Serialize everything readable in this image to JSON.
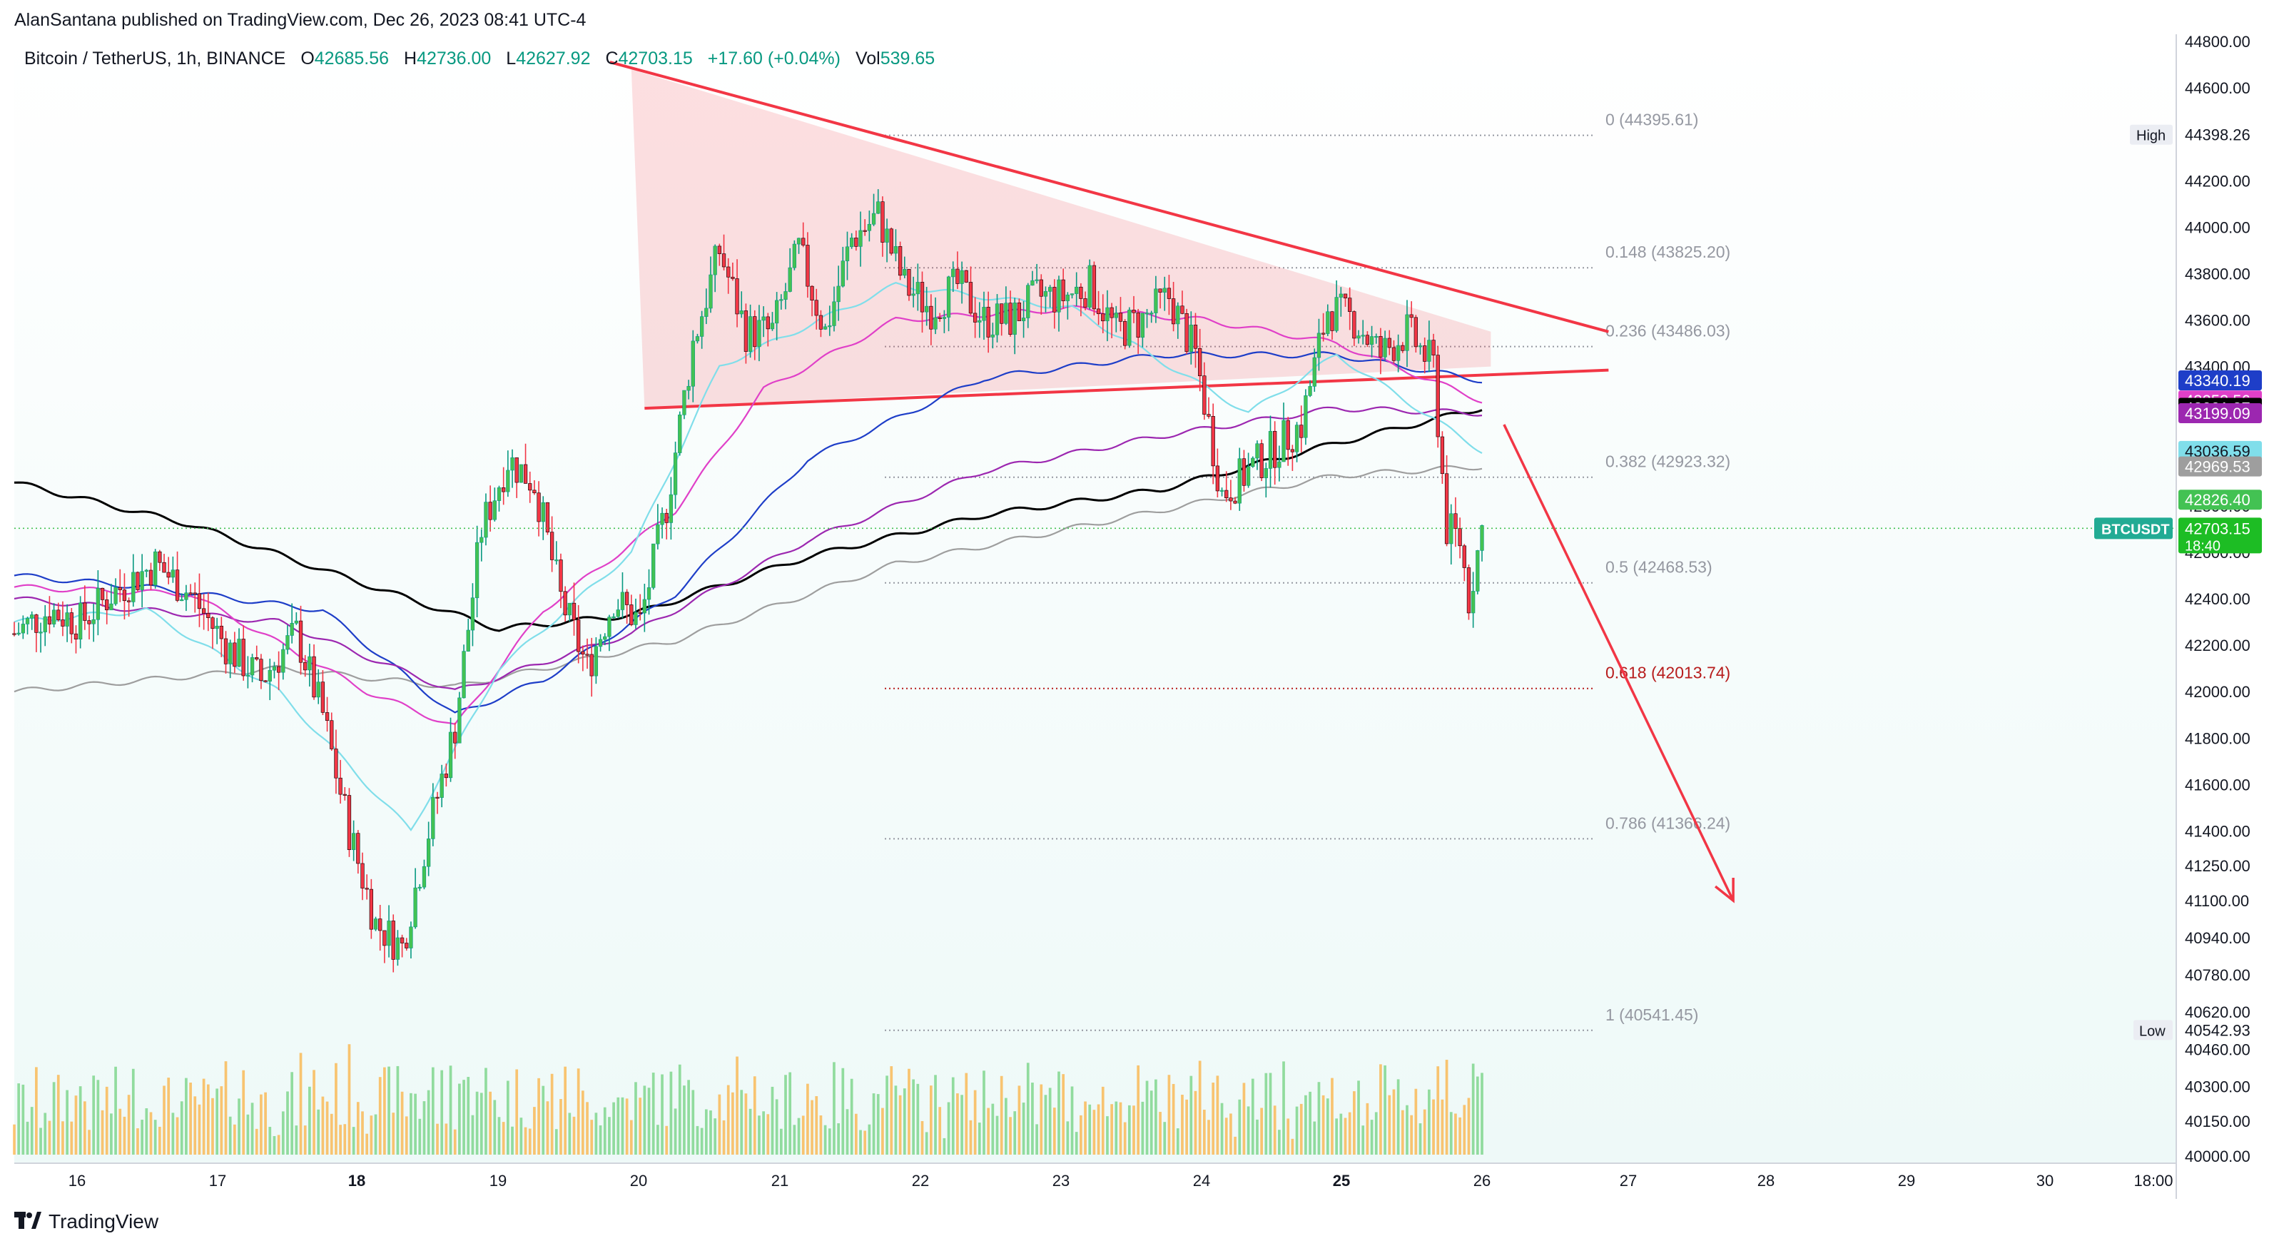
{
  "header": {
    "published_line": "AlanSantana published on TradingView.com, Dec 26, 2023 08:41 UTC-4"
  },
  "legend": {
    "symbol": "Bitcoin / TetherUS, 1h, BINANCE",
    "o_label": "O",
    "o_value": "42685.56",
    "h_label": "H",
    "h_value": "42736.00",
    "l_label": "L",
    "l_value": "42627.92",
    "c_label": "C",
    "c_value": "42703.15",
    "change": "+17.60 (+0.04%)",
    "vol_label": "Vol",
    "vol_value": "539.65"
  },
  "footer": {
    "brand": "TradingView"
  },
  "colors": {
    "up": "#089981",
    "up_fill": "#43c253",
    "down": "#f23645",
    "ema_black": "#000000",
    "ema_blue": "#1e3ec8",
    "ema_magenta": "#e040c8",
    "ema_purple": "#9c27b0",
    "ema_cyan": "#80deea",
    "ema_gray": "#9e9e9e",
    "triangle": "#f23645",
    "arrow": "#f23645"
  },
  "chart_data": {
    "type": "candlestick",
    "title": "Bitcoin / TetherUS, 1h, BINANCE",
    "timeframe": "1h",
    "x_axis_labels": [
      "16",
      "17",
      "18",
      "19",
      "20",
      "21",
      "22",
      "23",
      "24",
      "25",
      "26",
      "27",
      "28",
      "29",
      "30",
      "18:00"
    ],
    "y_axis_ticks": [
      "44800.00",
      "44600.00",
      "44398.26",
      "44200.00",
      "44000.00",
      "43800.00",
      "43600.00",
      "43400.00",
      "43200.00",
      "43000.00",
      "42800.00",
      "42600.00",
      "42400.00",
      "42200.00",
      "42000.00",
      "41800.00",
      "41600.00",
      "41400.00",
      "41250.00",
      "41100.00",
      "40940.00",
      "40780.00",
      "40620.00",
      "40460.00",
      "40300.00",
      "40150.00",
      "40000.00"
    ],
    "ylim": [
      40000,
      44800
    ],
    "last_price": {
      "symbol": "BTCUSDT",
      "value": "42703.15",
      "countdown": "18:40"
    },
    "price_tags": [
      {
        "value": "43340.19",
        "color": "#1e3ec8"
      },
      {
        "value": "43253.56",
        "color": "#e040c8"
      },
      {
        "value": "43221.87",
        "color": "#000000"
      },
      {
        "value": "43199.09",
        "color": "#9c27b0"
      },
      {
        "value": "43036.59",
        "color": "#80deea"
      },
      {
        "value": "42969.53",
        "color": "#9e9e9e"
      },
      {
        "value": "42826.40",
        "color": "#43c253"
      }
    ],
    "high": {
      "label": "High",
      "value": "44398.26"
    },
    "low": {
      "label": "Low",
      "value": "40542.93"
    },
    "fibonacci": [
      {
        "label": "0 (44395.61)",
        "value": 44395.61
      },
      {
        "label": "0.148 (43825.20)",
        "value": 43825.2
      },
      {
        "label": "0.236 (43486.03)",
        "value": 43486.03
      },
      {
        "label": "0.382 (42923.32)",
        "value": 42923.32
      },
      {
        "label": "0.5 (42468.53)",
        "value": 42468.53
      },
      {
        "label": "0.618 (42013.74)",
        "value": 42013.74,
        "color": "#b71c1c"
      },
      {
        "label": "0.786 (41366.24)",
        "value": 41366.24
      },
      {
        "label": "1 (40541.45)",
        "value": 40541.45
      }
    ],
    "anchors": [
      {
        "t": 0,
        "p": 42250
      },
      {
        "t": 8,
        "p": 42350
      },
      {
        "t": 15,
        "p": 42300
      },
      {
        "t": 22,
        "p": 42420
      },
      {
        "t": 32,
        "p": 42550
      },
      {
        "t": 40,
        "p": 42420
      },
      {
        "t": 48,
        "p": 42200
      },
      {
        "t": 56,
        "p": 42050
      },
      {
        "t": 64,
        "p": 42250
      },
      {
        "t": 70,
        "p": 41900
      },
      {
        "t": 76,
        "p": 41400
      },
      {
        "t": 82,
        "p": 41000
      },
      {
        "t": 88,
        "p": 40900
      },
      {
        "t": 94,
        "p": 41400
      },
      {
        "t": 100,
        "p": 41850
      },
      {
        "t": 106,
        "p": 42700
      },
      {
        "t": 112,
        "p": 43000
      },
      {
        "t": 118,
        "p": 42900
      },
      {
        "t": 124,
        "p": 42400
      },
      {
        "t": 130,
        "p": 42100
      },
      {
        "t": 136,
        "p": 42400
      },
      {
        "t": 142,
        "p": 42300
      },
      {
        "t": 148,
        "p": 42800
      },
      {
        "t": 154,
        "p": 43500
      },
      {
        "t": 160,
        "p": 43900
      },
      {
        "t": 166,
        "p": 43550
      },
      {
        "t": 172,
        "p": 43550
      },
      {
        "t": 178,
        "p": 43900
      },
      {
        "t": 184,
        "p": 43550
      },
      {
        "t": 190,
        "p": 43950
      },
      {
        "t": 196,
        "p": 44050
      },
      {
        "t": 202,
        "p": 43750
      },
      {
        "t": 208,
        "p": 43650
      },
      {
        "t": 214,
        "p": 43750
      },
      {
        "t": 220,
        "p": 43600
      },
      {
        "t": 226,
        "p": 43600
      },
      {
        "t": 232,
        "p": 43700
      },
      {
        "t": 238,
        "p": 43700
      },
      {
        "t": 244,
        "p": 43750
      },
      {
        "t": 250,
        "p": 43550
      },
      {
        "t": 256,
        "p": 43600
      },
      {
        "t": 262,
        "p": 43700
      },
      {
        "t": 268,
        "p": 43450
      },
      {
        "t": 274,
        "p": 42850
      },
      {
        "t": 280,
        "p": 42950
      },
      {
        "t": 286,
        "p": 43050
      },
      {
        "t": 292,
        "p": 43150
      },
      {
        "t": 298,
        "p": 43650
      },
      {
        "t": 304,
        "p": 43600
      },
      {
        "t": 310,
        "p": 43450
      },
      {
        "t": 316,
        "p": 43550
      },
      {
        "t": 322,
        "p": 43400
      },
      {
        "t": 325,
        "p": 42700
      },
      {
        "t": 328,
        "p": 42650
      },
      {
        "t": 330,
        "p": 42400
      },
      {
        "t": 333,
        "p": 42700
      }
    ],
    "ema_series": [
      {
        "name": "",
        "color": "#000000",
        "values": [
          {
            "t": 0,
            "p": 42900
          },
          {
            "t": 40,
            "p": 42720
          },
          {
            "t": 80,
            "p": 42460
          },
          {
            "t": 110,
            "p": 42270
          },
          {
            "t": 140,
            "p": 42330
          },
          {
            "t": 180,
            "p": 42580
          },
          {
            "t": 220,
            "p": 42760
          },
          {
            "t": 260,
            "p": 42870
          },
          {
            "t": 300,
            "p": 43070
          },
          {
            "t": 333,
            "p": 43221.87
          }
        ]
      },
      {
        "name": "",
        "color": "#9e9e9e",
        "values": [
          {
            "t": 0,
            "p": 42000
          },
          {
            "t": 60,
            "p": 42100
          },
          {
            "t": 100,
            "p": 42020
          },
          {
            "t": 150,
            "p": 42220
          },
          {
            "t": 200,
            "p": 42550
          },
          {
            "t": 260,
            "p": 42780
          },
          {
            "t": 300,
            "p": 42930
          },
          {
            "t": 333,
            "p": 42969.53
          }
        ]
      },
      {
        "name": "",
        "color": "#1e3ec8",
        "values": [
          {
            "t": 0,
            "p": 42500
          },
          {
            "t": 30,
            "p": 42450
          },
          {
            "t": 70,
            "p": 42350
          },
          {
            "t": 100,
            "p": 41900
          },
          {
            "t": 120,
            "p": 42050
          },
          {
            "t": 150,
            "p": 42420
          },
          {
            "t": 180,
            "p": 43000
          },
          {
            "t": 220,
            "p": 43350
          },
          {
            "t": 260,
            "p": 43450
          },
          {
            "t": 300,
            "p": 43450
          },
          {
            "t": 333,
            "p": 43340.19
          }
        ]
      },
      {
        "name": "",
        "color": "#9c27b0",
        "values": [
          {
            "t": 0,
            "p": 42400
          },
          {
            "t": 60,
            "p": 42300
          },
          {
            "t": 100,
            "p": 42000
          },
          {
            "t": 140,
            "p": 42250
          },
          {
            "t": 180,
            "p": 42650
          },
          {
            "t": 220,
            "p": 42950
          },
          {
            "t": 260,
            "p": 43100
          },
          {
            "t": 300,
            "p": 43220
          },
          {
            "t": 333,
            "p": 43199.09
          }
        ]
      },
      {
        "name": "",
        "color": "#e040c8",
        "values": [
          {
            "t": 0,
            "p": 42450
          },
          {
            "t": 40,
            "p": 42420
          },
          {
            "t": 80,
            "p": 42000
          },
          {
            "t": 100,
            "p": 41850
          },
          {
            "t": 120,
            "p": 42350
          },
          {
            "t": 150,
            "p": 42780
          },
          {
            "t": 170,
            "p": 43300
          },
          {
            "t": 200,
            "p": 43600
          },
          {
            "t": 240,
            "p": 43650
          },
          {
            "t": 270,
            "p": 43600
          },
          {
            "t": 300,
            "p": 43500
          },
          {
            "t": 333,
            "p": 43253.56
          }
        ]
      },
      {
        "name": "",
        "color": "#80deea",
        "values": [
          {
            "t": 0,
            "p": 42300
          },
          {
            "t": 30,
            "p": 42350
          },
          {
            "t": 60,
            "p": 42000
          },
          {
            "t": 90,
            "p": 41400
          },
          {
            "t": 110,
            "p": 42100
          },
          {
            "t": 140,
            "p": 42600
          },
          {
            "t": 160,
            "p": 43400
          },
          {
            "t": 200,
            "p": 43750
          },
          {
            "t": 240,
            "p": 43650
          },
          {
            "t": 280,
            "p": 43200
          },
          {
            "t": 300,
            "p": 43450
          },
          {
            "t": 333,
            "p": 43036.59
          }
        ]
      }
    ],
    "triangle": {
      "upper": [
        {
          "t": 140,
          "p": 44680
        },
        {
          "t": 335,
          "p": 43550
        }
      ],
      "lower": [
        {
          "t": 143,
          "p": 43220
        },
        {
          "t": 335,
          "p": 43400
        }
      ]
    },
    "projection_arrow": [
      {
        "t": 338,
        "p": 43150
      },
      {
        "t": 390,
        "p": 41100
      }
    ],
    "volume_max": 1
  }
}
